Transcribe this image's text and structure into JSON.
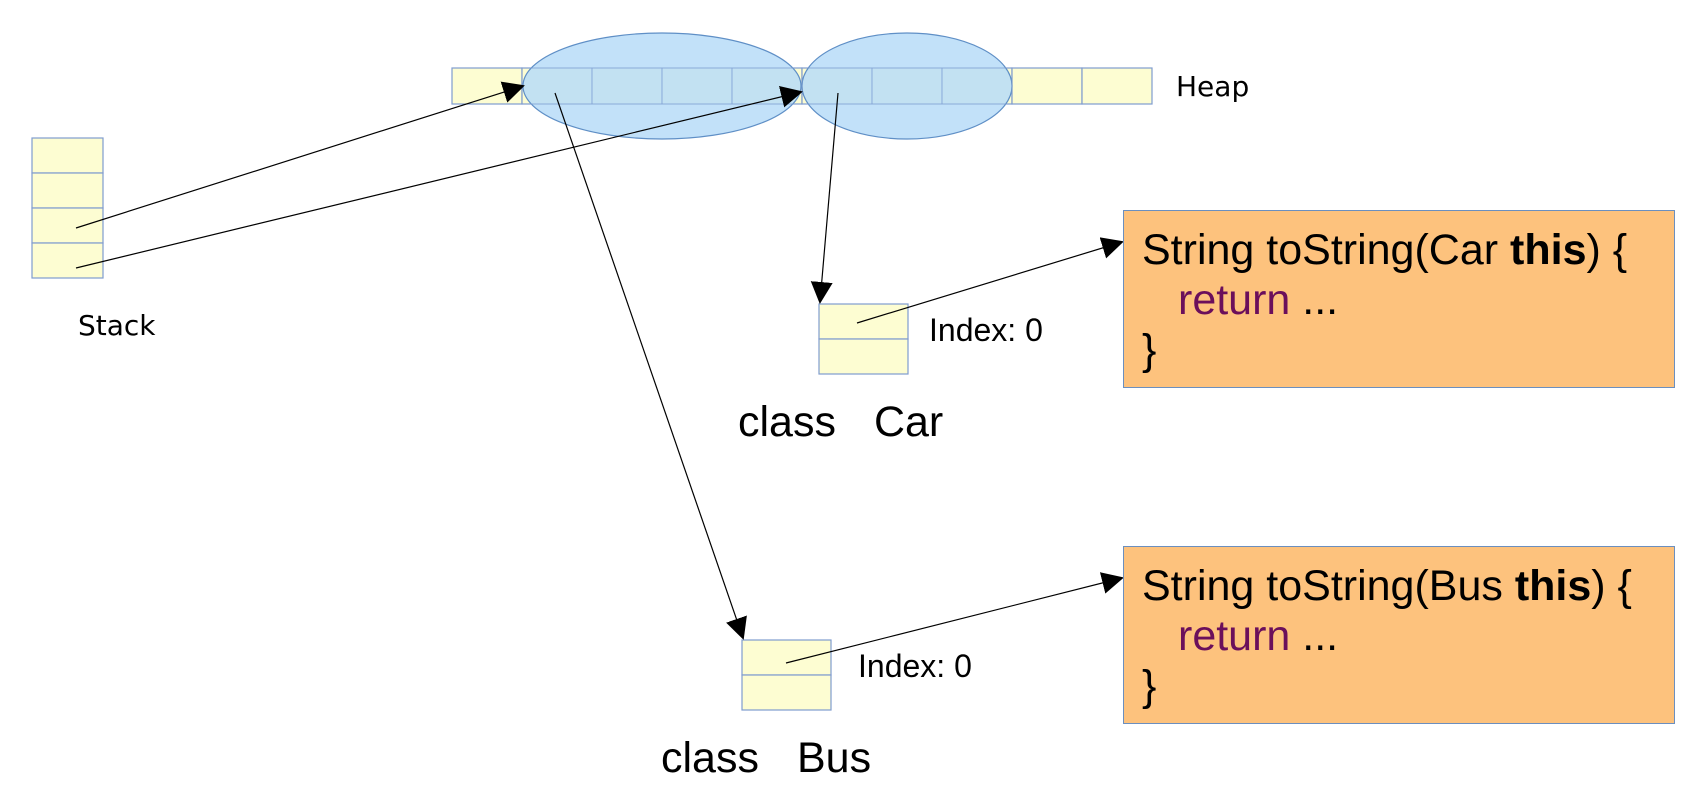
{
  "heap": {
    "label": "Heap",
    "cell_count": 10,
    "object_a_cells": 4,
    "object_b_cells": 3
  },
  "stack": {
    "label": "Stack",
    "cell_count": 4
  },
  "classes": [
    {
      "id": "car",
      "caption_kw": "class",
      "caption_name": "Car",
      "vtable_slots": 2,
      "index_label": "Index: 0",
      "method": {
        "prefix": "String toString(Car ",
        "this_kw": "this",
        "suffix": ") {",
        "return_kw": "return",
        "return_rest": " ...",
        "close": "}"
      }
    },
    {
      "id": "bus",
      "caption_kw": "class",
      "caption_name": "Bus",
      "vtable_slots": 2,
      "index_label": "Index: 0",
      "method": {
        "prefix": "String toString(Bus ",
        "this_kw": "this",
        "suffix": ") {",
        "return_kw": "return",
        "return_rest": " ...",
        "close": "}"
      }
    }
  ],
  "colors": {
    "cell_fill": "#fdfdd2",
    "cell_stroke": "#7f9ccf",
    "object_fill": "#b7dcf8",
    "object_stroke": "#5f8fc6",
    "code_fill": "#fdc27d",
    "return_kw": "#6b0f5b"
  }
}
